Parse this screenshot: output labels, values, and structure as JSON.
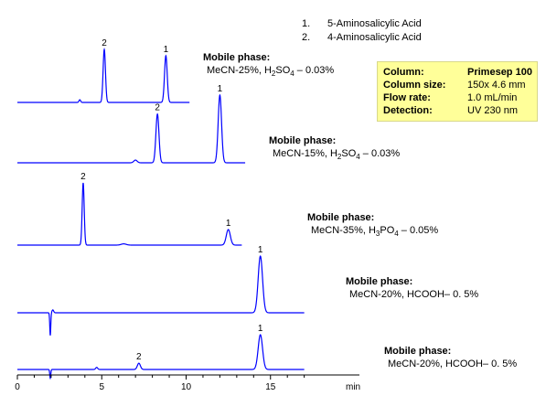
{
  "legend": [
    {
      "num": "1.",
      "name": "5-Aminosalicylic Acid"
    },
    {
      "num": "2.",
      "name": "4-Aminosalicylic Acid"
    }
  ],
  "info": [
    {
      "label": "Column:",
      "value": "Primesep  100",
      "bold": true
    },
    {
      "label": "Column size:",
      "value": "150x 4.6  mm",
      "bold": false
    },
    {
      "label": "Flow rate:",
      "value": "1.0 mL/min",
      "bold": false
    },
    {
      "label": "Detection:",
      "value": "UV 230 nm",
      "bold": false
    }
  ],
  "chart_data": {
    "type": "line",
    "x_axis": {
      "range": [
        0,
        17
      ],
      "ticks": [
        0,
        5,
        10,
        15
      ],
      "unit_label": "min"
    },
    "line_color": "#0000ff",
    "traces": [
      {
        "mobile_phase_title": "Mobile phase:",
        "mobile_phase_parts": [
          "MeCN-25%, H",
          "2",
          "SO",
          "4",
          " – 0.03%"
        ],
        "x_end": 10.2,
        "peaks": [
          {
            "id": "2",
            "rt": 5.15,
            "height": 1.0,
            "width": 0.07
          },
          {
            "id": "1",
            "rt": 8.8,
            "height": 0.88,
            "width": 0.08
          }
        ],
        "minor": [
          {
            "rt": 3.7,
            "height": 0.05,
            "width": 0.05
          }
        ]
      },
      {
        "mobile_phase_title": "Mobile phase:",
        "mobile_phase_parts": [
          "MeCN-15%, H",
          "2",
          "SO",
          "4",
          " – 0.03%"
        ],
        "x_end": 13.5,
        "peaks": [
          {
            "id": "2",
            "rt": 8.3,
            "height": 0.72,
            "width": 0.09
          },
          {
            "id": "1",
            "rt": 12.0,
            "height": 1.0,
            "width": 0.1
          }
        ],
        "minor": [
          {
            "rt": 7.0,
            "height": 0.04,
            "width": 0.1
          }
        ]
      },
      {
        "mobile_phase_title": "Mobile phase:",
        "mobile_phase_parts": [
          "MeCN-35%, H",
          "3",
          "PO",
          "4",
          " – 0.05%"
        ],
        "x_end": 13.3,
        "peaks": [
          {
            "id": "2",
            "rt": 3.9,
            "height": 1.0,
            "width": 0.06
          },
          {
            "id": "1",
            "rt": 12.5,
            "height": 0.25,
            "width": 0.12
          }
        ],
        "minor": [
          {
            "rt": 6.3,
            "height": 0.02,
            "width": 0.15
          }
        ]
      },
      {
        "mobile_phase_title": "Mobile phase:",
        "mobile_phase_parts": [
          "MeCN-20%, HCOOH– 0. 5%"
        ],
        "x_end": 17.0,
        "peaks": [
          {
            "id": "1",
            "rt": 14.4,
            "height": 1.0,
            "width": 0.13
          }
        ],
        "minor": [
          {
            "rt": 2.1,
            "height": 0.05,
            "width": 0.05
          }
        ],
        "dip": {
          "rt": 1.95,
          "depth": 0.4
        }
      },
      {
        "mobile_phase_title": "Mobile phase:",
        "mobile_phase_parts": [
          "MeCN-20%, HCOOH– 0. 5%"
        ],
        "x_end": 17.0,
        "peaks": [
          {
            "id": "2",
            "rt": 7.2,
            "height": 0.18,
            "width": 0.09
          },
          {
            "id": "1",
            "rt": 14.4,
            "height": 1.0,
            "width": 0.13
          }
        ],
        "minor": [
          {
            "rt": 4.7,
            "height": 0.06,
            "width": 0.06
          }
        ],
        "dip": {
          "rt": 1.95,
          "depth": 0.25
        }
      }
    ]
  }
}
